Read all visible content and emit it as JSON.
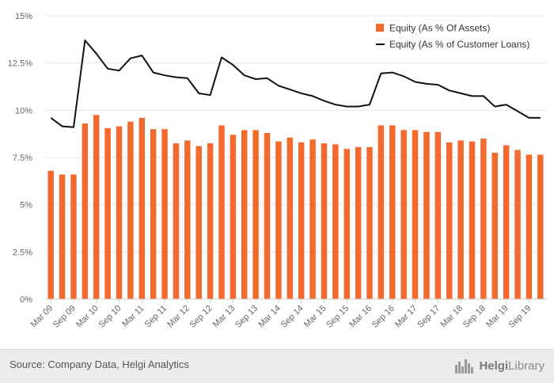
{
  "chart_data": {
    "type": "bar+line",
    "title": "",
    "xlabel": "",
    "ylabel": "",
    "ylim": [
      0,
      15
    ],
    "y_ticks": [
      "0%",
      "2.5%",
      "5%",
      "7.5%",
      "10%",
      "12.5%",
      "15%"
    ],
    "y_tick_values": [
      0,
      2.5,
      5,
      7.5,
      10,
      12.5,
      15
    ],
    "grid": "horizontal",
    "legend_position": "top-right",
    "categories": [
      "Mar 09",
      "Jun 09",
      "Sep 09",
      "Dec 09",
      "Mar 10",
      "Jun 10",
      "Sep 10",
      "Dec 10",
      "Mar 11",
      "Jun 11",
      "Sep 11",
      "Dec 11",
      "Mar 12",
      "Jun 12",
      "Sep 12",
      "Dec 12",
      "Mar 13",
      "Jun 13",
      "Sep 13",
      "Dec 13",
      "Mar 14",
      "Jun 14",
      "Sep 14",
      "Dec 14",
      "Mar 15",
      "Jun 15",
      "Sep 15",
      "Dec 15",
      "Mar 16",
      "Jun 16",
      "Sep 16",
      "Dec 16",
      "Mar 17",
      "Jun 17",
      "Sep 17",
      "Dec 17",
      "Mar 18",
      "Jun 18",
      "Sep 18",
      "Dec 18",
      "Mar 19",
      "Jun 19",
      "Sep 19",
      "Dec 19"
    ],
    "x_tick_labels": [
      "Mar 09",
      "Sep 09",
      "Mar 10",
      "Sep 10",
      "Mar 11",
      "Sep 11",
      "Mar 12",
      "Sep 12",
      "Mar 13",
      "Sep 13",
      "Mar 14",
      "Sep 14",
      "Mar 15",
      "Sep 15",
      "Mar 16",
      "Sep 16",
      "Mar 17",
      "Sep 17",
      "Mar 18",
      "Sep 18",
      "Mar 19",
      "Sep 19"
    ],
    "series": [
      {
        "name": "Equity (As % Of Assets)",
        "type": "bar",
        "color": "#f26a2e",
        "values": [
          6.8,
          6.6,
          6.6,
          9.3,
          9.75,
          9.05,
          9.15,
          9.4,
          9.6,
          9.0,
          9.0,
          8.25,
          8.4,
          8.1,
          8.25,
          9.2,
          8.7,
          8.95,
          8.95,
          8.8,
          8.35,
          8.55,
          8.3,
          8.45,
          8.25,
          8.2,
          7.95,
          8.05,
          8.05,
          9.2,
          9.2,
          8.95,
          8.95,
          8.85,
          8.85,
          8.3,
          8.4,
          8.35,
          8.5,
          7.75,
          8.15,
          7.9,
          7.65,
          7.65
        ]
      },
      {
        "name": "Equity (As % of Customer Loans)",
        "type": "line",
        "color": "#111111",
        "values": [
          9.6,
          9.15,
          9.1,
          13.7,
          13.0,
          12.2,
          12.1,
          12.75,
          12.9,
          12.0,
          11.85,
          11.75,
          11.7,
          10.9,
          10.8,
          12.8,
          12.4,
          11.85,
          11.65,
          11.7,
          11.3,
          11.1,
          10.9,
          10.75,
          10.5,
          10.3,
          10.2,
          10.2,
          10.3,
          11.95,
          12.0,
          11.8,
          11.5,
          11.4,
          11.35,
          11.05,
          10.9,
          10.75,
          10.75,
          10.2,
          10.3,
          9.95,
          9.6,
          9.6
        ]
      }
    ]
  },
  "legend": {
    "items": [
      {
        "label": "Equity (As % Of Assets)",
        "color": "#f26a2e",
        "kind": "square"
      },
      {
        "label": "Equity (As % of Customer Loans)",
        "color": "#111111",
        "kind": "line"
      }
    ]
  },
  "footer": {
    "source": "Source: Company Data, Helgi Analytics",
    "logo_left": "Helgi",
    "logo_right": "Library"
  }
}
